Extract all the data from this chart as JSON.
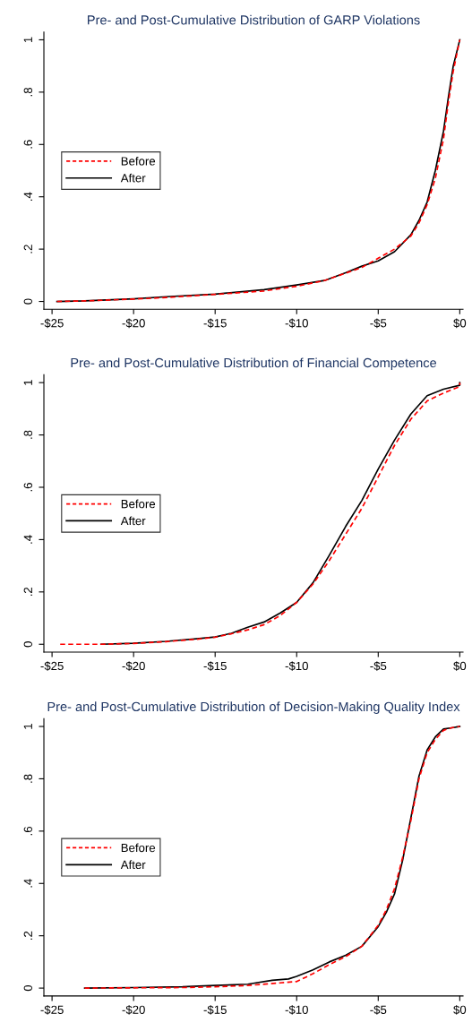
{
  "chart_data": [
    {
      "type": "line",
      "title": "Pre- and Post-Cumulative Distribution of GARP Violations",
      "legend": "left",
      "grid": false,
      "xlim": [
        -25.5,
        0.2
      ],
      "ylim": [
        -0.03,
        1.03
      ],
      "xticks": [
        {
          "value": -25,
          "label": "-$25"
        },
        {
          "value": -20,
          "label": "-$20"
        },
        {
          "value": -15,
          "label": "-$15"
        },
        {
          "value": -10,
          "label": "-$10"
        },
        {
          "value": -5,
          "label": "-$5"
        },
        {
          "value": 0,
          "label": "$0"
        }
      ],
      "yticks": [
        {
          "value": 0,
          "label": "0"
        },
        {
          "value": 0.2,
          "label": ".2"
        },
        {
          "value": 0.4,
          "label": ".4"
        },
        {
          "value": 0.6,
          "label": ".6"
        },
        {
          "value": 0.8,
          "label": ".8"
        },
        {
          "value": 1,
          "label": "1"
        }
      ],
      "series": [
        {
          "name": "Before",
          "color": "#ff0000",
          "line_style": "dashed",
          "x": [
            -24.7,
            -23,
            -20,
            -18,
            -15,
            -12,
            -10,
            -8.3,
            -7,
            -6,
            -5,
            -4,
            -3,
            -2.5,
            -2,
            -1.5,
            -1,
            -0.7,
            -0.4,
            0
          ],
          "values": [
            0,
            0.002,
            0.009,
            0.015,
            0.027,
            0.04,
            0.058,
            0.08,
            0.108,
            0.13,
            0.165,
            0.2,
            0.25,
            0.3,
            0.37,
            0.47,
            0.62,
            0.76,
            0.88,
            1
          ]
        },
        {
          "name": "After",
          "color": "#000000",
          "line_style": "solid",
          "x": [
            -24.7,
            -23,
            -20,
            -18,
            -15,
            -12,
            -10,
            -8.3,
            -7,
            -6,
            -5,
            -4,
            -3,
            -2.5,
            -2,
            -1.5,
            -1,
            -0.7,
            -0.4,
            0
          ],
          "values": [
            0,
            0.002,
            0.01,
            0.018,
            0.028,
            0.045,
            0.063,
            0.08,
            0.11,
            0.135,
            0.155,
            0.19,
            0.255,
            0.31,
            0.38,
            0.5,
            0.65,
            0.78,
            0.9,
            1
          ]
        }
      ]
    },
    {
      "type": "line",
      "title": "Pre- and Post-Cumulative Distribution of Financial Competence",
      "legend": "left",
      "grid": false,
      "xlim": [
        -25.5,
        0.2
      ],
      "ylim": [
        -0.03,
        1.03
      ],
      "xticks": [
        {
          "value": -25,
          "label": "-$25"
        },
        {
          "value": -20,
          "label": "-$20"
        },
        {
          "value": -15,
          "label": "-$15"
        },
        {
          "value": -10,
          "label": "-$10"
        },
        {
          "value": -5,
          "label": "-$5"
        },
        {
          "value": 0,
          "label": "$0"
        }
      ],
      "yticks": [
        {
          "value": 0,
          "label": "0"
        },
        {
          "value": 0.2,
          "label": ".2"
        },
        {
          "value": 0.4,
          "label": ".4"
        },
        {
          "value": 0.6,
          "label": ".6"
        },
        {
          "value": 0.8,
          "label": ".8"
        },
        {
          "value": 1,
          "label": "1"
        }
      ],
      "series": [
        {
          "name": "Before",
          "color": "#ff0000",
          "line_style": "dashed",
          "x": [
            -24.5,
            -22,
            -20,
            -18,
            -16,
            -15,
            -14,
            -13,
            -12,
            -11,
            -10,
            -9,
            -8,
            -7,
            -6,
            -5,
            -4,
            -3,
            -2,
            -1,
            0,
            0
          ],
          "values": [
            0,
            0,
            0.003,
            0.01,
            0.02,
            0.027,
            0.04,
            0.055,
            0.075,
            0.11,
            0.16,
            0.23,
            0.32,
            0.42,
            0.52,
            0.64,
            0.76,
            0.86,
            0.93,
            0.96,
            0.985,
            1
          ]
        },
        {
          "name": "After",
          "color": "#000000",
          "line_style": "solid",
          "x": [
            -22,
            -20,
            -18,
            -16,
            -15,
            -14,
            -13,
            -12,
            -11,
            -10,
            -9,
            -8,
            -7,
            -6,
            -5,
            -4,
            -3,
            -2,
            -1,
            0,
            0
          ],
          "values": [
            0,
            0.004,
            0.011,
            0.022,
            0.028,
            0.042,
            0.065,
            0.085,
            0.12,
            0.16,
            0.235,
            0.34,
            0.45,
            0.55,
            0.67,
            0.78,
            0.88,
            0.95,
            0.975,
            0.99,
            1
          ]
        }
      ]
    },
    {
      "type": "line",
      "title": "Pre- and Post-Cumulative Distribution of Decision-Making Quality Index",
      "legend": "left",
      "grid": false,
      "xlim": [
        -25.5,
        0.2
      ],
      "ylim": [
        -0.03,
        1.03
      ],
      "xticks": [
        {
          "value": -25,
          "label": "-$25"
        },
        {
          "value": -20,
          "label": "-$20"
        },
        {
          "value": -15,
          "label": "-$15"
        },
        {
          "value": -10,
          "label": "-$10"
        },
        {
          "value": -5,
          "label": "-$5"
        },
        {
          "value": 0,
          "label": "$0"
        }
      ],
      "yticks": [
        {
          "value": 0,
          "label": "0"
        },
        {
          "value": 0.2,
          "label": ".2"
        },
        {
          "value": 0.4,
          "label": ".4"
        },
        {
          "value": 0.6,
          "label": ".6"
        },
        {
          "value": 0.8,
          "label": ".8"
        },
        {
          "value": 1,
          "label": "1"
        }
      ],
      "series": [
        {
          "name": "Before",
          "color": "#ff0000",
          "line_style": "dashed",
          "x": [
            -23,
            -20,
            -17,
            -15,
            -13,
            -11,
            -10,
            -9,
            -8,
            -7,
            -6,
            -5,
            -4.5,
            -4,
            -3.5,
            -3,
            -2.5,
            -2,
            -1.5,
            -1,
            -0.5,
            0
          ],
          "values": [
            0,
            0.001,
            0.002,
            0.005,
            0.01,
            0.02,
            0.025,
            0.055,
            0.09,
            0.12,
            0.16,
            0.24,
            0.3,
            0.38,
            0.5,
            0.64,
            0.8,
            0.9,
            0.95,
            0.985,
            0.995,
            1
          ]
        },
        {
          "name": "After",
          "color": "#000000",
          "line_style": "solid",
          "x": [
            -23,
            -20,
            -17,
            -15,
            -13,
            -11.5,
            -10.5,
            -10,
            -9,
            -8,
            -7,
            -6,
            -5,
            -4.5,
            -4,
            -3.5,
            -3,
            -2.5,
            -2,
            -1.5,
            -1,
            -0.5,
            0
          ],
          "values": [
            0,
            0.002,
            0.005,
            0.01,
            0.015,
            0.03,
            0.035,
            0.045,
            0.07,
            0.1,
            0.125,
            0.16,
            0.235,
            0.29,
            0.36,
            0.49,
            0.65,
            0.81,
            0.91,
            0.96,
            0.99,
            0.995,
            1
          ]
        }
      ]
    }
  ]
}
